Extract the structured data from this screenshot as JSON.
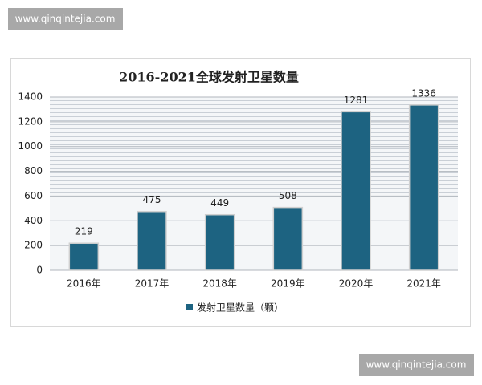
{
  "watermarks": [
    "www.qinqintejia.com",
    "www.qinqintejia.com"
  ],
  "chart_data": {
    "type": "bar",
    "title": "2016-2021全球发射卫星数量",
    "categories": [
      "2016年",
      "2017年",
      "2018年",
      "2019年",
      "2020年",
      "2021年"
    ],
    "series": [
      {
        "name": "发射卫星数量（颗）",
        "color": "#1d6381",
        "values": [
          219,
          475,
          449,
          508,
          1281,
          1336
        ]
      }
    ],
    "ylim": [
      0,
      1400
    ],
    "yticks": [
      0,
      200,
      400,
      600,
      800,
      1000,
      1200,
      1400
    ],
    "grid": true
  }
}
